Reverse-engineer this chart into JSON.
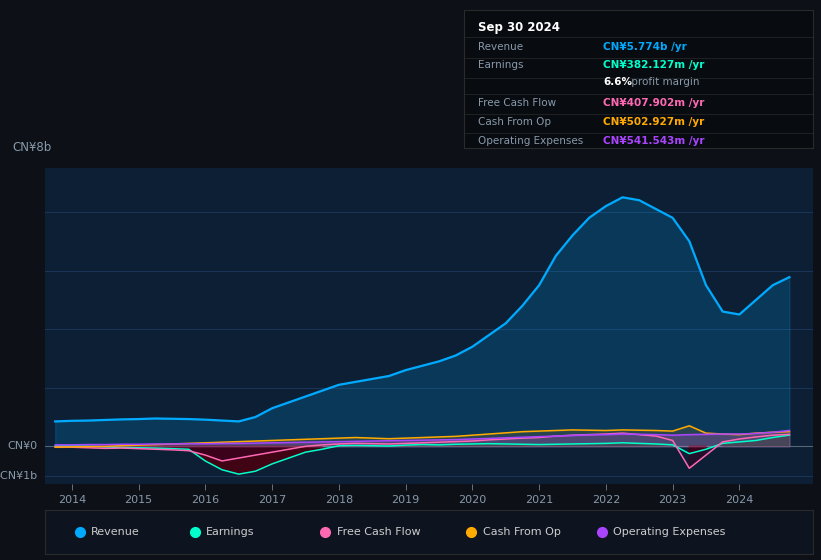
{
  "bg_color": "#0d1117",
  "plot_bg_color": "#0d1f35",
  "ylabel": "CN¥8b",
  "ylabel_neg": "-CN¥1b",
  "ylabel_zero": "CN¥0",
  "ylim_min": -1300000000.0,
  "ylim_max": 9500000000.0,
  "xlim_min": 2013.6,
  "xlim_max": 2025.1,
  "grid_color": "#1e3a5f",
  "revenue_color": "#00aaff",
  "earnings_color": "#00ffcc",
  "fcf_color": "#ff69b4",
  "cashop_color": "#ffaa00",
  "opex_color": "#aa44ff",
  "legend_bg": "#0d1420",
  "info_bg": "#080c10",
  "info_border": "#2a2a2a",
  "info_title": "Sep 30 2024",
  "info_rows": [
    {
      "label": "Revenue",
      "value": "CN¥5.774b /yr",
      "color": "#00aaff"
    },
    {
      "label": "Earnings",
      "value": "CN¥382.127m /yr",
      "color": "#00ffcc"
    },
    {
      "label": "",
      "value": "6.6% profit margin",
      "color": null
    },
    {
      "label": "Free Cash Flow",
      "value": "CN¥407.902m /yr",
      "color": "#ff69b4"
    },
    {
      "label": "Cash From Op",
      "value": "CN¥502.927m /yr",
      "color": "#ffaa00"
    },
    {
      "label": "Operating Expenses",
      "value": "CN¥541.543m /yr",
      "color": "#aa44ff"
    }
  ],
  "legend_items": [
    {
      "label": "Revenue",
      "color": "#00aaff"
    },
    {
      "label": "Earnings",
      "color": "#00ffcc"
    },
    {
      "label": "Free Cash Flow",
      "color": "#ff69b4"
    },
    {
      "label": "Cash From Op",
      "color": "#ffaa00"
    },
    {
      "label": "Operating Expenses",
      "color": "#aa44ff"
    }
  ],
  "t_years": [
    2013.75,
    2014.0,
    2014.25,
    2014.5,
    2014.75,
    2015.0,
    2015.25,
    2015.5,
    2015.75,
    2016.0,
    2016.25,
    2016.5,
    2016.75,
    2017.0,
    2017.25,
    2017.5,
    2017.75,
    2018.0,
    2018.25,
    2018.5,
    2018.75,
    2019.0,
    2019.25,
    2019.5,
    2019.75,
    2020.0,
    2020.25,
    2020.5,
    2020.75,
    2021.0,
    2021.25,
    2021.5,
    2021.75,
    2022.0,
    2022.25,
    2022.5,
    2022.75,
    2023.0,
    2023.25,
    2023.5,
    2023.75,
    2024.0,
    2024.25,
    2024.5,
    2024.75
  ],
  "revenue": [
    0.85,
    0.87,
    0.88,
    0.9,
    0.92,
    0.93,
    0.95,
    0.94,
    0.93,
    0.91,
    0.88,
    0.85,
    1.0,
    1.3,
    1.5,
    1.7,
    1.9,
    2.1,
    2.2,
    2.3,
    2.4,
    2.6,
    2.75,
    2.9,
    3.1,
    3.4,
    3.8,
    4.2,
    4.8,
    5.5,
    6.5,
    7.2,
    7.8,
    8.2,
    8.5,
    8.4,
    8.1,
    7.8,
    7.0,
    5.5,
    4.6,
    4.5,
    5.0,
    5.5,
    5.774
  ],
  "earnings": [
    0.01,
    0.01,
    0.0,
    -0.02,
    -0.04,
    -0.05,
    -0.06,
    -0.08,
    -0.1,
    -0.5,
    -0.8,
    -0.95,
    -0.85,
    -0.6,
    -0.4,
    -0.2,
    -0.1,
    0.02,
    0.03,
    0.02,
    0.01,
    0.04,
    0.06,
    0.05,
    0.07,
    0.08,
    0.09,
    0.08,
    0.07,
    0.06,
    0.07,
    0.08,
    0.09,
    0.1,
    0.12,
    0.1,
    0.08,
    0.05,
    -0.25,
    -0.1,
    0.1,
    0.15,
    0.2,
    0.3,
    0.382
  ],
  "free_cash_flow": [
    -0.02,
    -0.03,
    -0.05,
    -0.07,
    -0.06,
    -0.08,
    -0.1,
    -0.12,
    -0.15,
    -0.3,
    -0.5,
    -0.4,
    -0.3,
    -0.2,
    -0.1,
    0.0,
    0.05,
    0.08,
    0.1,
    0.09,
    0.08,
    0.1,
    0.12,
    0.14,
    0.16,
    0.18,
    0.22,
    0.25,
    0.28,
    0.3,
    0.35,
    0.38,
    0.4,
    0.42,
    0.45,
    0.4,
    0.35,
    0.2,
    -0.75,
    -0.3,
    0.15,
    0.25,
    0.32,
    0.38,
    0.408
  ],
  "cash_from_op": [
    -0.03,
    -0.02,
    -0.01,
    0.0,
    0.02,
    0.04,
    0.06,
    0.08,
    0.1,
    0.12,
    0.14,
    0.16,
    0.18,
    0.2,
    0.22,
    0.24,
    0.26,
    0.28,
    0.3,
    0.28,
    0.26,
    0.28,
    0.3,
    0.32,
    0.34,
    0.38,
    0.42,
    0.46,
    0.5,
    0.52,
    0.54,
    0.56,
    0.55,
    0.54,
    0.56,
    0.55,
    0.54,
    0.52,
    0.7,
    0.45,
    0.42,
    0.4,
    0.45,
    0.48,
    0.503
  ],
  "operating_expenses": [
    0.05,
    0.05,
    0.06,
    0.06,
    0.07,
    0.07,
    0.08,
    0.08,
    0.09,
    0.09,
    0.1,
    0.1,
    0.11,
    0.12,
    0.13,
    0.14,
    0.15,
    0.16,
    0.17,
    0.18,
    0.19,
    0.2,
    0.21,
    0.22,
    0.23,
    0.25,
    0.27,
    0.29,
    0.31,
    0.33,
    0.35,
    0.37,
    0.39,
    0.4,
    0.42,
    0.41,
    0.4,
    0.38,
    0.4,
    0.41,
    0.42,
    0.42,
    0.44,
    0.48,
    0.542
  ]
}
